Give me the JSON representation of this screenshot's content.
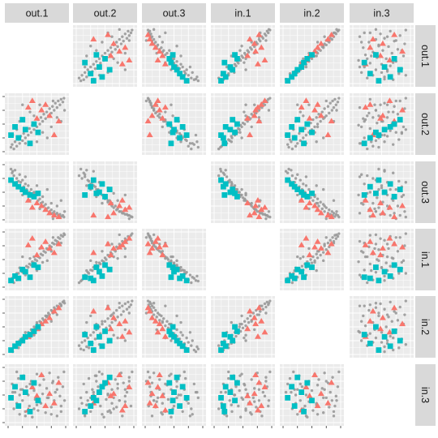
{
  "chart_data": {
    "type": "scatter",
    "layout": "scatterplot-matrix",
    "variables": [
      "out.1",
      "out.2",
      "out.3",
      "in.1",
      "in.2",
      "in.3"
    ],
    "column_labels": [
      "out.1",
      "out.2",
      "out.3",
      "in.1",
      "in.2",
      "in.3"
    ],
    "row_labels": [
      "out.1",
      "out.2",
      "out.3",
      "in.1",
      "in.2",
      "in.3"
    ],
    "diagonal": "empty",
    "axis_range": [
      0,
      1
    ],
    "grid": true,
    "legend": "none",
    "colors": {
      "panel_bg": "#ebebeb",
      "grid": "#ffffff",
      "strip_bg": "#d9d9d9",
      "other": "#999999",
      "triangle": "#f8766d",
      "square": "#00bfc4"
    },
    "groups": [
      {
        "marker": "circle",
        "color": "#999999",
        "values": [
          [
            0.05,
            0.08,
            0.92,
            0.11,
            0.1,
            0.45
          ],
          [
            0.07,
            0.13,
            0.85,
            0.16,
            0.08,
            0.7
          ],
          [
            0.1,
            0.05,
            0.8,
            0.08,
            0.16,
            0.25
          ],
          [
            0.12,
            0.18,
            0.9,
            0.2,
            0.14,
            0.55
          ],
          [
            0.15,
            0.1,
            0.75,
            0.13,
            0.22,
            0.35
          ],
          [
            0.18,
            0.22,
            0.7,
            0.25,
            0.12,
            0.8
          ],
          [
            0.2,
            0.15,
            0.82,
            0.18,
            0.25,
            0.15
          ],
          [
            0.22,
            0.28,
            0.68,
            0.3,
            0.2,
            0.6
          ],
          [
            0.25,
            0.2,
            0.72,
            0.27,
            0.3,
            0.4
          ],
          [
            0.27,
            0.33,
            0.6,
            0.34,
            0.28,
            0.85
          ],
          [
            0.3,
            0.25,
            0.65,
            0.31,
            0.35,
            0.2
          ],
          [
            0.32,
            0.38,
            0.55,
            0.38,
            0.33,
            0.65
          ],
          [
            0.35,
            0.3,
            0.62,
            0.36,
            0.4,
            0.5
          ],
          [
            0.37,
            0.42,
            0.5,
            0.42,
            0.38,
            0.3
          ],
          [
            0.4,
            0.35,
            0.55,
            0.4,
            0.45,
            0.75
          ],
          [
            0.42,
            0.48,
            0.45,
            0.46,
            0.42,
            0.1
          ],
          [
            0.45,
            0.4,
            0.5,
            0.44,
            0.5,
            0.58
          ],
          [
            0.47,
            0.52,
            0.4,
            0.5,
            0.48,
            0.42
          ],
          [
            0.5,
            0.45,
            0.45,
            0.48,
            0.55,
            0.88
          ],
          [
            0.52,
            0.58,
            0.35,
            0.55,
            0.52,
            0.22
          ],
          [
            0.55,
            0.5,
            0.38,
            0.53,
            0.6,
            0.68
          ],
          [
            0.57,
            0.62,
            0.3,
            0.6,
            0.58,
            0.35
          ],
          [
            0.6,
            0.55,
            0.32,
            0.58,
            0.65,
            0.52
          ],
          [
            0.62,
            0.68,
            0.25,
            0.65,
            0.62,
            0.78
          ],
          [
            0.65,
            0.6,
            0.28,
            0.63,
            0.7,
            0.18
          ],
          [
            0.67,
            0.72,
            0.2,
            0.7,
            0.68,
            0.62
          ],
          [
            0.7,
            0.65,
            0.22,
            0.68,
            0.75,
            0.45
          ],
          [
            0.72,
            0.78,
            0.15,
            0.75,
            0.72,
            0.9
          ],
          [
            0.75,
            0.7,
            0.18,
            0.73,
            0.8,
            0.28
          ],
          [
            0.77,
            0.82,
            0.12,
            0.8,
            0.78,
            0.72
          ],
          [
            0.8,
            0.75,
            0.15,
            0.78,
            0.85,
            0.4
          ],
          [
            0.82,
            0.88,
            0.1,
            0.85,
            0.82,
            0.55
          ],
          [
            0.85,
            0.8,
            0.12,
            0.83,
            0.88,
            0.12
          ],
          [
            0.87,
            0.92,
            0.08,
            0.9,
            0.86,
            0.82
          ],
          [
            0.9,
            0.85,
            0.1,
            0.88,
            0.92,
            0.48
          ],
          [
            0.92,
            0.95,
            0.06,
            0.94,
            0.9,
            0.3
          ],
          [
            0.95,
            0.9,
            0.08,
            0.92,
            0.95,
            0.65
          ],
          [
            0.97,
            0.97,
            0.05,
            0.97,
            0.97,
            0.92
          ],
          [
            0.3,
            0.15,
            0.78,
            0.22,
            0.4,
            0.12
          ],
          [
            0.45,
            0.65,
            0.48,
            0.55,
            0.35,
            0.25
          ],
          [
            0.6,
            0.35,
            0.42,
            0.45,
            0.55,
            0.85
          ],
          [
            0.2,
            0.55,
            0.58,
            0.35,
            0.22,
            0.5
          ],
          [
            0.75,
            0.45,
            0.3,
            0.65,
            0.6,
            0.15
          ],
          [
            0.85,
            0.62,
            0.25,
            0.78,
            0.72,
            0.6
          ],
          [
            0.15,
            0.4,
            0.68,
            0.25,
            0.18,
            0.92
          ],
          [
            0.55,
            0.85,
            0.2,
            0.7,
            0.45,
            0.38
          ],
          [
            0.38,
            0.72,
            0.35,
            0.52,
            0.3,
            0.7
          ],
          [
            0.68,
            0.25,
            0.55,
            0.48,
            0.7,
            0.45
          ],
          [
            0.92,
            0.55,
            0.35,
            0.8,
            0.88,
            0.2
          ],
          [
            0.25,
            0.85,
            0.45,
            0.55,
            0.25,
            0.6
          ],
          [
            0.5,
            0.18,
            0.62,
            0.3,
            0.58,
            0.32
          ],
          [
            0.78,
            0.92,
            0.02,
            0.9,
            0.75,
            0.75
          ],
          [
            0.08,
            0.3,
            0.88,
            0.12,
            0.05,
            0.55
          ],
          [
            0.98,
            0.75,
            0.15,
            0.95,
            0.93,
            0.4
          ]
        ]
      },
      {
        "marker": "triangle",
        "color": "#f8766d",
        "values": [
          [
            0.8,
            0.3,
            0.08,
            0.62,
            0.78,
            0.35
          ],
          [
            0.88,
            0.55,
            0.05,
            0.78,
            0.84,
            0.72
          ],
          [
            0.72,
            0.65,
            0.12,
            0.7,
            0.66,
            0.52
          ],
          [
            0.65,
            0.85,
            0.18,
            0.82,
            0.6,
            0.3
          ],
          [
            0.58,
            0.75,
            0.25,
            0.72,
            0.55,
            0.86
          ],
          [
            0.5,
            0.6,
            0.3,
            0.58,
            0.46,
            0.48
          ],
          [
            0.42,
            0.92,
            0.22,
            0.88,
            0.4,
            0.64
          ],
          [
            0.35,
            0.8,
            0.35,
            0.76,
            0.32,
            0.22
          ]
        ]
      },
      {
        "marker": "square",
        "color": "#00bfc4",
        "values": [
          [
            0.05,
            0.3,
            0.72,
            0.12,
            0.08,
            0.45
          ],
          [
            0.12,
            0.45,
            0.65,
            0.2,
            0.15,
            0.65
          ],
          [
            0.18,
            0.25,
            0.6,
            0.16,
            0.2,
            0.3
          ],
          [
            0.25,
            0.58,
            0.55,
            0.32,
            0.25,
            0.82
          ],
          [
            0.3,
            0.4,
            0.5,
            0.28,
            0.32,
            0.55
          ],
          [
            0.38,
            0.15,
            0.45,
            0.18,
            0.36,
            0.2
          ],
          [
            0.45,
            0.5,
            0.42,
            0.4,
            0.42,
            0.72
          ],
          [
            0.52,
            0.35,
            0.48,
            0.36,
            0.5,
            0.4
          ]
        ]
      }
    ]
  }
}
